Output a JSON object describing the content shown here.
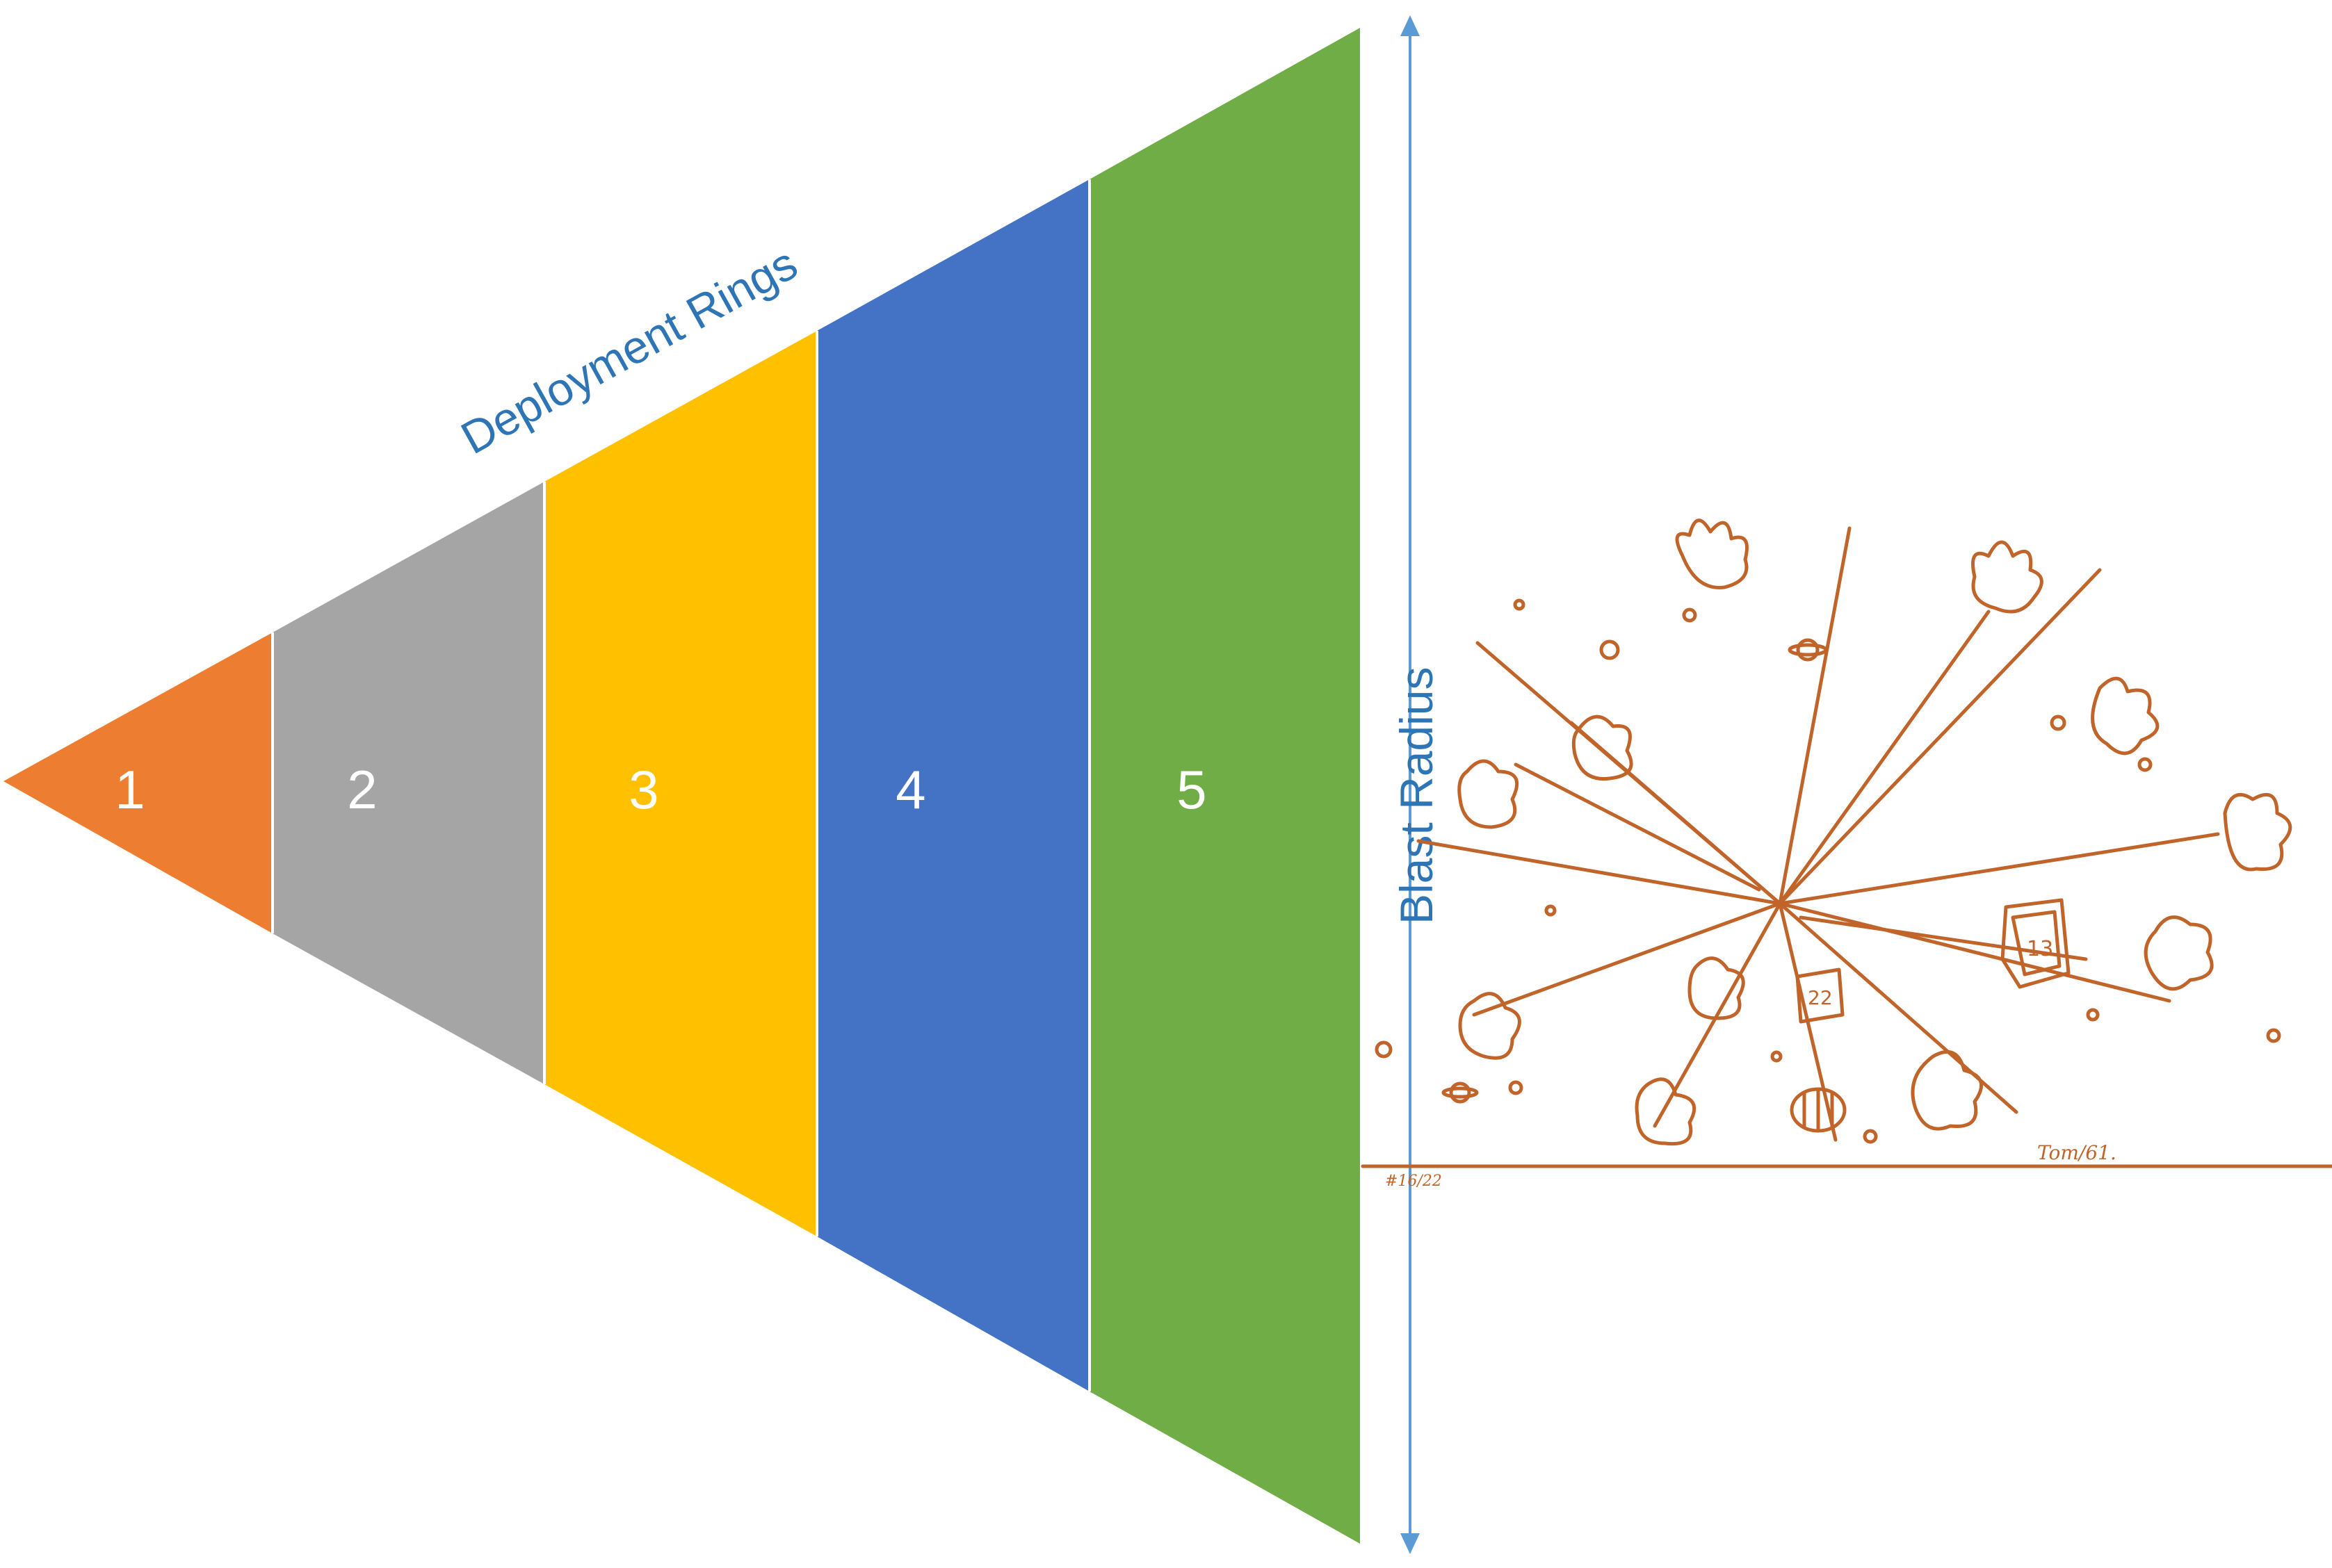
{
  "diagram": {
    "title": "Deployment Rings",
    "axis_label": "Blast Radius",
    "label_color": "#2E75B6",
    "arrow_color": "#5B9BD5",
    "rings": [
      {
        "label": "1",
        "color": "#ED7D31"
      },
      {
        "label": "2",
        "color": "#A5A5A5"
      },
      {
        "label": "3",
        "color": "#FFC000"
      },
      {
        "label": "4",
        "color": "#4472C4"
      },
      {
        "label": "5",
        "color": "#70AD47"
      }
    ]
  },
  "illustration": {
    "subject": "explosion sketch",
    "stroke_color": "#C0642A",
    "signature": "Tom/61.",
    "date_mark": "#16/22",
    "numbers": [
      "13",
      "22"
    ]
  }
}
